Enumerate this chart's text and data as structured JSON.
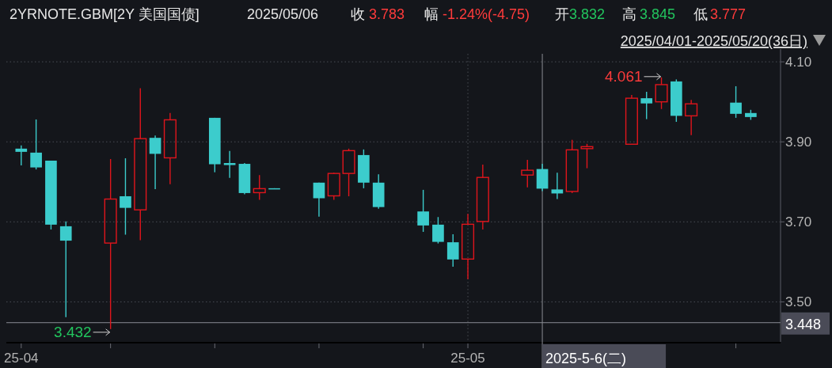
{
  "chart_data": {
    "type": "candlestick",
    "title": "2YRNOTE.GBM[2Y 美国国债]",
    "subtitle": "2025/04/01-2025/05/20(36日)",
    "annotations": [
      "2025/05/06",
      "收",
      "3.783",
      "幅",
      "-1.24%(-4.75)",
      "开",
      "3.832",
      "高",
      "3.845",
      "低",
      "3.777",
      {
        "text": "3.432",
        "x": "2025-04-07",
        "y": 3.432
      },
      {
        "text": "4.061",
        "x": "2025-05-14",
        "y": 4.061
      }
    ],
    "x": [
      "2025-04-01",
      "2025-04-02",
      "2025-04-03",
      "2025-04-04",
      "2025-04-07",
      "2025-04-08",
      "2025-04-09",
      "2025-04-10",
      "2025-04-11",
      "2025-04-14",
      "2025-04-15",
      "2025-04-16",
      "2025-04-17",
      "2025-04-18",
      "2025-04-21",
      "2025-04-22",
      "2025-04-23",
      "2025-04-24",
      "2025-04-25",
      "2025-04-28",
      "2025-04-29",
      "2025-04-30",
      "2025-05-01",
      "2025-05-02",
      "2025-05-05",
      "2025-05-06",
      "2025-05-07",
      "2025-05-08",
      "2025-05-09",
      "2025-05-12",
      "2025-05-13",
      "2025-05-14",
      "2025-05-15",
      "2025-05-16",
      "2025-05-19",
      "2025-05-20"
    ],
    "ohlc": [
      [
        3.883,
        3.891,
        3.841,
        3.875
      ],
      [
        3.873,
        3.956,
        3.831,
        3.836
      ],
      [
        3.853,
        3.853,
        3.681,
        3.693
      ],
      [
        3.689,
        3.701,
        3.462,
        3.653
      ],
      [
        3.647,
        3.857,
        3.432,
        3.757
      ],
      [
        3.764,
        3.859,
        3.668,
        3.735
      ],
      [
        3.73,
        4.034,
        3.654,
        3.908
      ],
      [
        3.91,
        3.916,
        3.782,
        3.87
      ],
      [
        3.86,
        3.972,
        3.794,
        3.955
      ],
      [
        3.96,
        3.96,
        3.824,
        3.844
      ],
      [
        3.847,
        3.877,
        3.81,
        3.842
      ],
      [
        3.845,
        3.847,
        3.769,
        3.772
      ],
      [
        3.773,
        3.817,
        3.755,
        3.783
      ],
      [
        3.784,
        3.784,
        3.783,
        3.783
      ],
      [
        3.798,
        3.798,
        3.713,
        3.759
      ],
      [
        3.765,
        3.823,
        3.755,
        3.821
      ],
      [
        3.821,
        3.883,
        3.764,
        3.878
      ],
      [
        3.867,
        3.881,
        3.784,
        3.798
      ],
      [
        3.798,
        3.819,
        3.733,
        3.737
      ],
      [
        3.726,
        3.78,
        3.675,
        3.691
      ],
      [
        3.693,
        3.712,
        3.646,
        3.65
      ],
      [
        3.649,
        3.669,
        3.588,
        3.606
      ],
      [
        3.607,
        3.72,
        3.557,
        3.694
      ],
      [
        3.701,
        3.843,
        3.681,
        3.811
      ],
      [
        3.817,
        3.855,
        3.786,
        3.829
      ],
      [
        3.832,
        3.845,
        3.777,
        3.783
      ],
      [
        3.781,
        3.823,
        3.757,
        3.771
      ],
      [
        3.776,
        3.905,
        3.772,
        3.88
      ],
      [
        3.883,
        3.895,
        3.834,
        3.888
      ],
      [
        3.894,
        4.017,
        3.894,
        4.009
      ],
      [
        4.009,
        4.025,
        3.957,
        3.996
      ],
      [
        4.0,
        4.061,
        3.982,
        4.043
      ],
      [
        4.051,
        4.056,
        3.95,
        3.965
      ],
      [
        3.965,
        4.005,
        3.917,
        3.995
      ],
      [
        3.998,
        4.039,
        3.96,
        3.97
      ],
      [
        3.972,
        3.98,
        3.955,
        3.962
      ]
    ],
    "colors": [
      "#3ccccc",
      "#3ccccc",
      "#3ccccc",
      "#3ccccc",
      "#e0151c",
      "#3ccccc",
      "#e0151c",
      "#3ccccc",
      "#e0151c",
      "#3ccccc",
      "#3ccccc",
      "#3ccccc",
      "#e0151c",
      "#3ccccc",
      "#3ccccc",
      "#e0151c",
      "#e0151c",
      "#3ccccc",
      "#3ccccc",
      "#3ccccc",
      "#3ccccc",
      "#3ccccc",
      "#e0151c",
      "#e0151c",
      "#e0151c",
      "#3ccccc",
      "#3ccccc",
      "#e0151c",
      "#e0151c",
      "#e0151c",
      "#3ccccc",
      "#e0151c",
      "#3ccccc",
      "#e0151c",
      "#3ccccc",
      "#3ccccc"
    ],
    "xlim": [
      "2025-03-31",
      "2025-05-22"
    ],
    "ylim": [
      3.4,
      4.12
    ],
    "yticks": [
      {
        "value": 3.5,
        "label": "3.50"
      },
      {
        "value": 3.7,
        "label": "3.70"
      },
      {
        "value": 3.9,
        "label": "3.90"
      },
      {
        "value": 4.1,
        "label": "4.10"
      }
    ],
    "xticks": [
      {
        "value": "2025-04-01",
        "label": "25-04"
      },
      {
        "value": "2025-04-07",
        "label": null
      },
      {
        "value": "2025-04-14",
        "label": null
      },
      {
        "value": "2025-04-21",
        "label": null
      },
      {
        "value": "2025-04-28",
        "label": null
      },
      {
        "value": "2025-05-01",
        "label": "25-05"
      },
      {
        "value": "2025-05-19",
        "label": null
      }
    ],
    "ref_lines": [
      {
        "axis": "x",
        "value": "2025-05-06",
        "label": "2025-5-6(二)"
      },
      {
        "axis": "y",
        "value": 3.448,
        "label": "3.448"
      }
    ],
    "grid": true
  }
}
